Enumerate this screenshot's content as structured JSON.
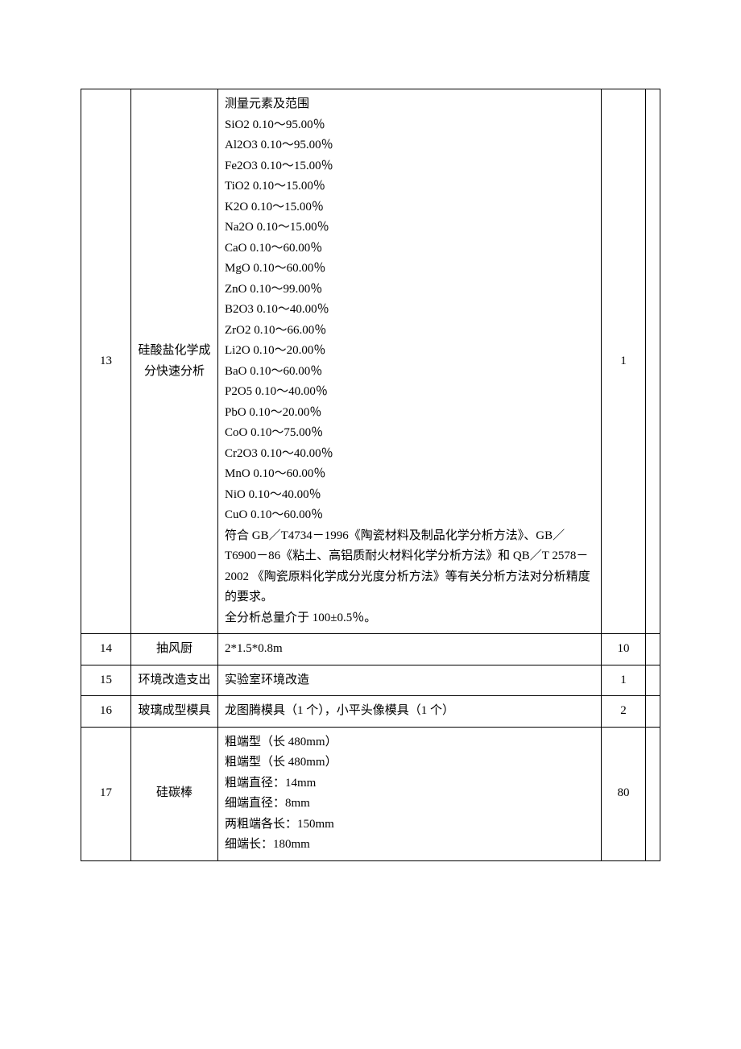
{
  "rows": [
    {
      "num": "13",
      "name": "硅酸盐化学成分快速分析",
      "desc": [
        "测量元素及范围",
        "SiO2 0.10～95.00％",
        "Al2O3 0.10～95.00％",
        "Fe2O3  0.10～15.00％",
        "TiO2  0.10～15.00％",
        "K2O  0.10～15.00％",
        "Na2O  0.10～15.00％",
        "CaO  0.10～60.00％",
        "MgO   0.10～60.00％",
        "ZnO  0.10～99.00％",
        "B2O3  0.10～40.00％",
        "ZrO2  0.10～66.00％",
        "Li2O  0.10～20.00％",
        "BaO   0.10～60.00％",
        "P2O5  0.10～40.00％",
        "PbO  0.10～20.00％",
        "CoO  0.10～75.00％",
        "Cr2O3  0.10～40.00％",
        "MnO  0.10～60.00％",
        "NiO   0.10～40.00％",
        "CuO  0.10～60.00％",
        "符合 GB／T4734－1996《陶瓷材料及制品化学分析方法》、GB／T6900－86《粘土、高铝质耐火材料化学分析方法》和 QB／T 2578－2002 《陶瓷原料化学成分光度分析方法》等有关分析方法对分析精度的要求。",
        "全分析总量介于 100±0.5％。"
      ],
      "qty": "1"
    },
    {
      "num": "14",
      "name": "抽风厨",
      "desc": [
        "2*1.5*0.8m"
      ],
      "qty": "10"
    },
    {
      "num": "15",
      "name": "环境改造支出",
      "desc": [
        "实验室环境改造"
      ],
      "qty": "1"
    },
    {
      "num": "16",
      "name": "玻璃成型模具",
      "desc": [
        "龙图腾模具（1 个），小平头像模具（1 个）"
      ],
      "qty": "2"
    },
    {
      "num": "17",
      "name": "硅碳棒",
      "desc": [
        "粗端型（长 480mm）",
        "粗端型（长 480mm）",
        "粗端直径：14mm",
        "细端直径：8mm",
        "两粗端各长：150mm",
        "细端长：180mm"
      ],
      "qty": "80"
    }
  ]
}
